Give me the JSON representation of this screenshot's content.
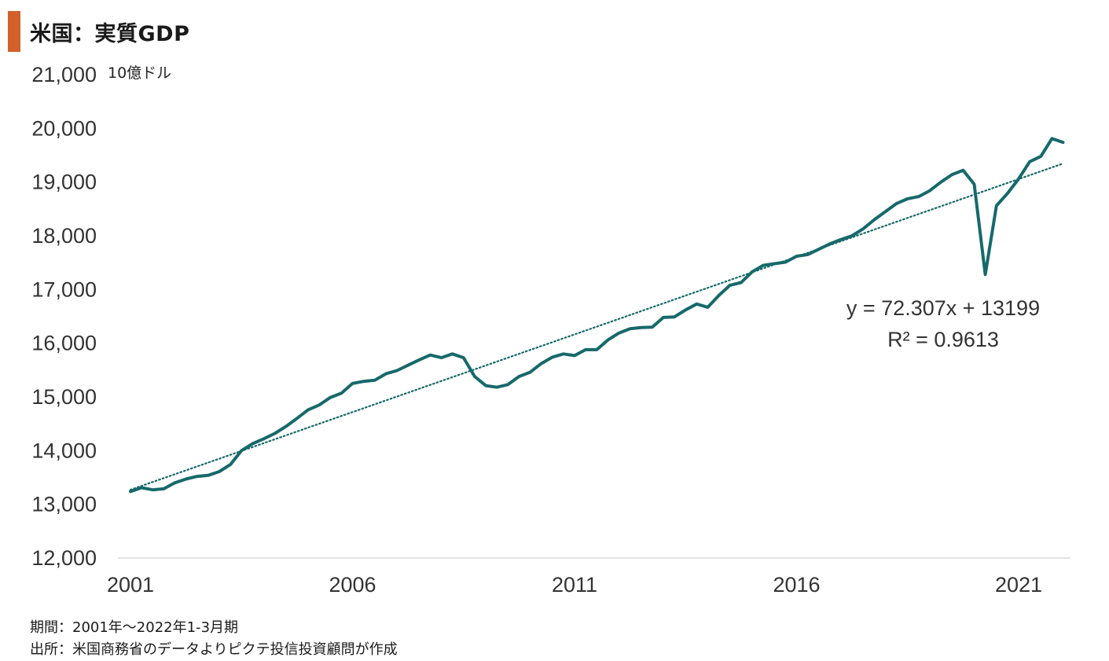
{
  "title": "米国：実質GDP",
  "footer": {
    "period": "期間：2001年～2022年1-3月期",
    "source": "出所：米国商務省のデータよりピクテ投信投資顧問が作成"
  },
  "colors": {
    "accent": "#d2602a",
    "line": "#17696b",
    "trend": "#17696b",
    "axis": "#d9d9d9"
  },
  "chart_data": {
    "type": "line",
    "title": "米国：実質GDP",
    "unit_label": "10億ドル",
    "x_ticks": [
      "2001",
      "2006",
      "2011",
      "2016",
      "2021"
    ],
    "y_ticks": [
      "12,000",
      "13,000",
      "14,000",
      "15,000",
      "16,000",
      "17,000",
      "18,000",
      "19,000",
      "20,000",
      "21,000"
    ],
    "ylim": [
      12000,
      21000
    ],
    "grid": false,
    "series": [
      {
        "name": "",
        "x": [
          "2001Q1",
          "2001Q2",
          "2001Q3",
          "2001Q4",
          "2002Q1",
          "2002Q2",
          "2002Q3",
          "2002Q4",
          "2003Q1",
          "2003Q2",
          "2003Q3",
          "2003Q4",
          "2004Q1",
          "2004Q2",
          "2004Q3",
          "2004Q4",
          "2005Q1",
          "2005Q2",
          "2005Q3",
          "2005Q4",
          "2006Q1",
          "2006Q2",
          "2006Q3",
          "2006Q4",
          "2007Q1",
          "2007Q2",
          "2007Q3",
          "2007Q4",
          "2008Q1",
          "2008Q2",
          "2008Q3",
          "2008Q4",
          "2009Q1",
          "2009Q2",
          "2009Q3",
          "2009Q4",
          "2010Q1",
          "2010Q2",
          "2010Q3",
          "2010Q4",
          "2011Q1",
          "2011Q2",
          "2011Q3",
          "2011Q4",
          "2012Q1",
          "2012Q2",
          "2012Q3",
          "2012Q4",
          "2013Q1",
          "2013Q2",
          "2013Q3",
          "2013Q4",
          "2014Q1",
          "2014Q2",
          "2014Q3",
          "2014Q4",
          "2015Q1",
          "2015Q2",
          "2015Q3",
          "2015Q4",
          "2016Q1",
          "2016Q2",
          "2016Q3",
          "2016Q4",
          "2017Q1",
          "2017Q2",
          "2017Q3",
          "2017Q4",
          "2018Q1",
          "2018Q2",
          "2018Q3",
          "2018Q4",
          "2019Q1",
          "2019Q2",
          "2019Q3",
          "2019Q4",
          "2020Q1",
          "2020Q2",
          "2020Q3",
          "2020Q4",
          "2021Q1",
          "2021Q2",
          "2021Q3",
          "2021Q4",
          "2022Q1"
        ],
        "values": [
          13240,
          13310,
          13270,
          13290,
          13400,
          13470,
          13520,
          13540,
          13610,
          13740,
          14000,
          14130,
          14220,
          14320,
          14450,
          14600,
          14760,
          14850,
          14990,
          15070,
          15250,
          15290,
          15310,
          15430,
          15490,
          15590,
          15690,
          15780,
          15730,
          15800,
          15730,
          15380,
          15210,
          15180,
          15230,
          15380,
          15460,
          15620,
          15740,
          15800,
          15770,
          15880,
          15880,
          16060,
          16190,
          16270,
          16290,
          16300,
          16480,
          16490,
          16620,
          16730,
          16670,
          16890,
          17080,
          17130,
          17330,
          17450,
          17480,
          17510,
          17620,
          17650,
          17750,
          17850,
          17930,
          18000,
          18130,
          18300,
          18450,
          18600,
          18690,
          18730,
          18840,
          19000,
          19140,
          19220,
          18960,
          17280,
          18560,
          18790,
          19060,
          19380,
          19480,
          19810,
          19740
        ]
      }
    ],
    "trendline": {
      "slope": 72.307,
      "intercept": 13199,
      "style": "dotted"
    },
    "annotations": [
      "y = 72.307x + 13199",
      "R² = 0.9613"
    ]
  }
}
